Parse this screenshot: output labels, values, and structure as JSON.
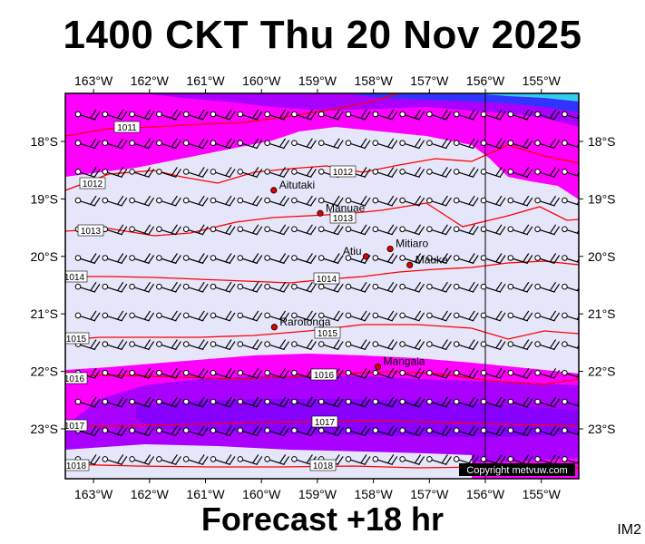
{
  "header": {
    "title": "1400 CKT Thu 20 Nov 2025"
  },
  "footer": {
    "forecast": "Forecast +18 hr",
    "code": "IM2",
    "copyright": "Copyright metvuw.com"
  },
  "axes": {
    "lon_labels": [
      "163°W",
      "162°W",
      "161°W",
      "160°W",
      "159°W",
      "158°W",
      "157°W",
      "156°W",
      "155°W"
    ],
    "lat_labels": [
      "18°S",
      "19°S",
      "20°S",
      "21°S",
      "22°S",
      "23°S"
    ]
  },
  "places": [
    {
      "name": "Aitutaki",
      "lon": -159.78,
      "lat": -18.85
    },
    {
      "name": "Manuae",
      "lon": -158.95,
      "lat": -19.25
    },
    {
      "name": "Mitiaro",
      "lon": -157.7,
      "lat": -19.87
    },
    {
      "name": "Atiu",
      "lon": -158.13,
      "lat": -20.0
    },
    {
      "name": "Mauke",
      "lon": -157.35,
      "lat": -20.15
    },
    {
      "name": "Rarotonga",
      "lon": -159.77,
      "lat": -21.23
    },
    {
      "name": "Mangaia",
      "lon": -157.92,
      "lat": -21.92
    }
  ],
  "isobar_labels": [
    "1011",
    "1012",
    "1012",
    "1013",
    "1013",
    "1014",
    "1014",
    "1015",
    "1015",
    "1016",
    "1016",
    "1017",
    "1017",
    "1018",
    "1018"
  ],
  "colors": {
    "background": "#e6e6fa",
    "magenta": "#ff00ff",
    "violet": "#aa00ff",
    "purple": "#7700ee",
    "blue": "#3333ff",
    "isobar": "#ff0000"
  }
}
